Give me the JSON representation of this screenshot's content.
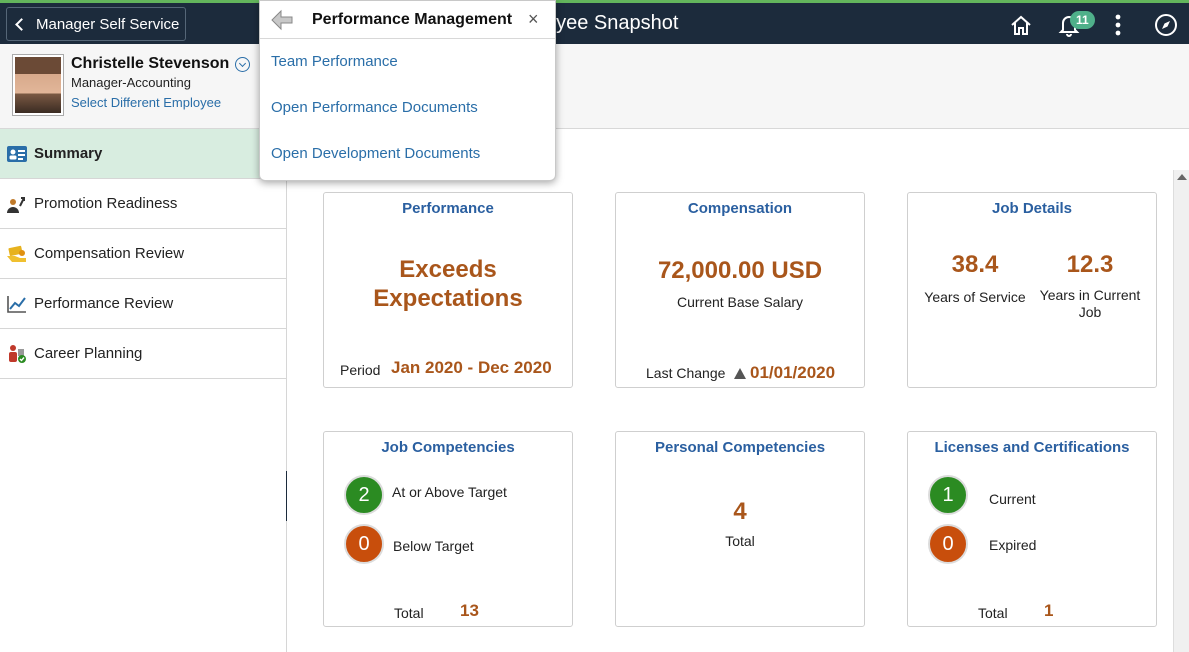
{
  "header": {
    "back_label": "Manager Self Service",
    "title_visible": "oyee Snapshot",
    "notification_count": "11",
    "icons": [
      "home-icon",
      "bell-icon",
      "more-vertical-icon",
      "compass-icon"
    ]
  },
  "employee": {
    "name": "Christelle Stevenson",
    "role": "Manager-Accounting",
    "select_link": "Select Different Employee"
  },
  "popup": {
    "title": "Performance Management",
    "close": "×",
    "links": [
      "Team Performance",
      "Open Performance Documents",
      "Open Development Documents"
    ]
  },
  "sidebar": {
    "items": [
      {
        "label": "Summary",
        "icon": "id-card-icon"
      },
      {
        "label": "Promotion Readiness",
        "icon": "person-arrow-icon"
      },
      {
        "label": "Compensation Review",
        "icon": "money-hand-icon"
      },
      {
        "label": "Performance Review",
        "icon": "line-chart-icon"
      },
      {
        "label": "Career Planning",
        "icon": "career-people-icon"
      }
    ]
  },
  "tiles": {
    "performance": {
      "title": "Performance",
      "rating_line1": "Exceeds",
      "rating_line2": "Expectations",
      "period_label": "Period",
      "period_value": "Jan 2020 - Dec 2020"
    },
    "compensation": {
      "title": "Compensation",
      "amount": "72,000.00 USD",
      "amount_label": "Current Base Salary",
      "last_change_label": "Last Change",
      "last_change_value": "01/01/2020"
    },
    "job_details": {
      "title": "Job Details",
      "years_service": "38.4",
      "years_service_label": "Years of Service",
      "years_job": "12.3",
      "years_job_label_1": "Years in Current",
      "years_job_label_2": "Job"
    },
    "job_competencies": {
      "title": "Job Competencies",
      "above_count": "2",
      "above_label": "At or Above Target",
      "below_count": "0",
      "below_label": "Below Target",
      "total_label": "Total",
      "total_value": "13"
    },
    "personal_competencies": {
      "title": "Personal Competencies",
      "total_value": "4",
      "total_label": "Total"
    },
    "licenses": {
      "title": "Licenses and Certifications",
      "current_count": "1",
      "current_label": "Current",
      "expired_count": "0",
      "expired_label": "Expired",
      "total_label": "Total",
      "total_value": "1"
    }
  },
  "colors": {
    "header_bg": "#1c2b3c",
    "accent_green": "#63b55c",
    "link_blue": "#2a6ea8",
    "tile_title_blue": "#2a5fa0",
    "value_orange": "#a9561b",
    "circle_green": "#2b8b22",
    "circle_orange": "#c84e0c",
    "active_nav_bg": "#d8ede0"
  }
}
